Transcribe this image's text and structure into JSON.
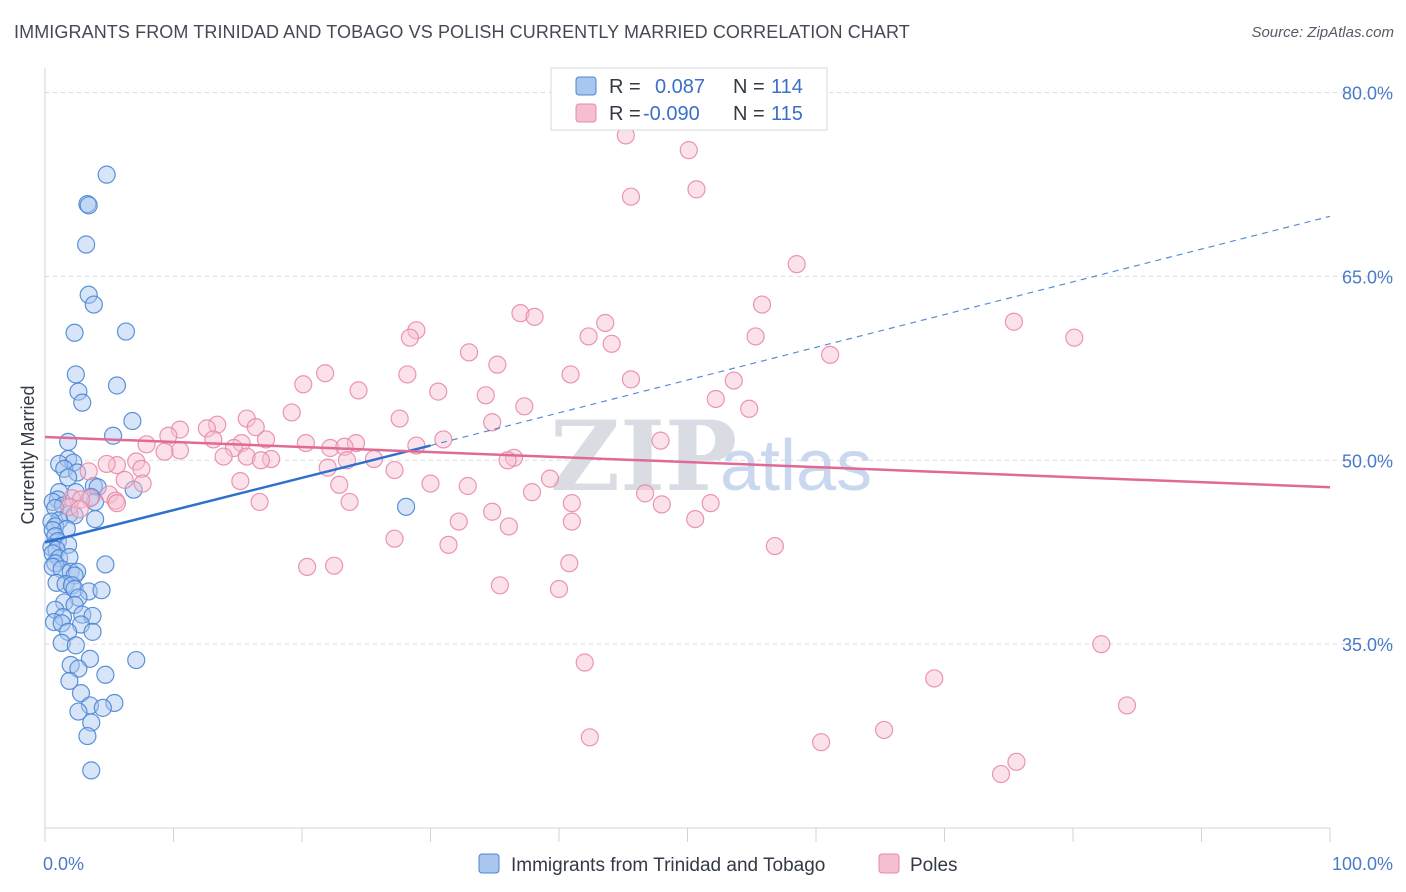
{
  "title": "IMMIGRANTS FROM TRINIDAD AND TOBAGO VS POLISH CURRENTLY MARRIED CORRELATION CHART",
  "source": "Source: ZipAtlas.com",
  "watermark": {
    "zip": "ZIP",
    "atlas": "atlas"
  },
  "colors": {
    "blue_fill": "#a9c6ef",
    "blue_stroke": "#4a86d4",
    "blue_line": "#2f6fcf",
    "pink_fill": "#f6bfd0",
    "pink_stroke": "#e98aa9",
    "pink_line": "#e06a93",
    "grid": "#d8dce3",
    "axis_text": "#4a7bc8"
  },
  "legend_top": {
    "rows": [
      {
        "r_label": "R =",
        "r_value": "0.087",
        "n_label": "N =",
        "n_value": "114",
        "color": "blue"
      },
      {
        "r_label": "R =",
        "r_value": "-0.090",
        "n_label": "N =",
        "n_value": "115",
        "color": "pink"
      }
    ]
  },
  "legend_bottom": [
    {
      "label": "Immigrants from Trinidad and Tobago",
      "color": "blue"
    },
    {
      "label": "Poles",
      "color": "pink"
    }
  ],
  "chart_data": {
    "type": "scatter",
    "title": "IMMIGRANTS FROM TRINIDAD AND TOBAGO VS POLISH CURRENTLY MARRIED CORRELATION CHART",
    "xlabel": "",
    "ylabel": "Currently Married",
    "xlim": [
      0,
      100
    ],
    "ylim": [
      20,
      82
    ],
    "x_tick_labels": [
      {
        "value": 0,
        "label": "0.0%"
      },
      {
        "value": 100,
        "label": "100.0%"
      }
    ],
    "y_ticks": [
      {
        "value": 35,
        "label": "35.0%"
      },
      {
        "value": 50,
        "label": "50.0%"
      },
      {
        "value": 65,
        "label": "65.0%"
      },
      {
        "value": 80,
        "label": "80.0%"
      }
    ],
    "x_minor_ticks": [
      0,
      10,
      20,
      30,
      40,
      50,
      60,
      70,
      80,
      90,
      100
    ],
    "grid": true,
    "legend_position": "top-center",
    "series": [
      {
        "name": "Immigrants from Trinidad and Tobago",
        "color": "blue",
        "trend": {
          "x": [
            0,
            30
          ],
          "y": [
            43.3,
            51.2
          ],
          "dashed_extension": {
            "x": [
              30,
              100
            ],
            "y": [
              51.2,
              69.9
            ]
          }
        },
        "points": [
          [
            4.8,
            73.3
          ],
          [
            3.3,
            70.9
          ],
          [
            3.4,
            70.8
          ],
          [
            3.2,
            67.6
          ],
          [
            3.4,
            63.5
          ],
          [
            3.8,
            62.7
          ],
          [
            2.3,
            60.4
          ],
          [
            6.3,
            60.5
          ],
          [
            2.4,
            57.0
          ],
          [
            5.6,
            56.1
          ],
          [
            2.6,
            55.6
          ],
          [
            2.9,
            54.7
          ],
          [
            6.8,
            53.2
          ],
          [
            5.3,
            52.0
          ],
          [
            1.8,
            51.5
          ],
          [
            1.8,
            50.1
          ],
          [
            2.2,
            49.8
          ],
          [
            1.1,
            49.7
          ],
          [
            1.5,
            49.3
          ],
          [
            2.5,
            49.0
          ],
          [
            1.8,
            48.6
          ],
          [
            3.8,
            47.9
          ],
          [
            4.1,
            47.8
          ],
          [
            6.9,
            47.6
          ],
          [
            1.1,
            47.4
          ],
          [
            2.4,
            47.4
          ],
          [
            3.6,
            47.0
          ],
          [
            1.0,
            46.8
          ],
          [
            0.6,
            46.6
          ],
          [
            3.9,
            46.6
          ],
          [
            1.4,
            46.3
          ],
          [
            0.8,
            46.1
          ],
          [
            1.9,
            45.6
          ],
          [
            2.3,
            45.5
          ],
          [
            1.1,
            45.1
          ],
          [
            3.9,
            45.2
          ],
          [
            0.5,
            45.0
          ],
          [
            0.8,
            44.6
          ],
          [
            1.7,
            44.4
          ],
          [
            0.6,
            44.3
          ],
          [
            0.8,
            43.8
          ],
          [
            1.0,
            43.4
          ],
          [
            1.8,
            43.1
          ],
          [
            0.5,
            42.9
          ],
          [
            0.9,
            42.7
          ],
          [
            0.6,
            42.4
          ],
          [
            1.1,
            42.0
          ],
          [
            1.9,
            42.1
          ],
          [
            0.8,
            41.6
          ],
          [
            4.7,
            41.5
          ],
          [
            0.6,
            41.3
          ],
          [
            1.3,
            41.1
          ],
          [
            2.0,
            40.9
          ],
          [
            2.5,
            40.9
          ],
          [
            2.3,
            40.6
          ],
          [
            0.9,
            40.0
          ],
          [
            1.6,
            39.9
          ],
          [
            2.1,
            39.8
          ],
          [
            2.3,
            39.5
          ],
          [
            3.4,
            39.3
          ],
          [
            4.4,
            39.4
          ],
          [
            2.6,
            38.8
          ],
          [
            1.5,
            38.4
          ],
          [
            2.3,
            38.2
          ],
          [
            0.8,
            37.8
          ],
          [
            2.9,
            37.4
          ],
          [
            3.7,
            37.3
          ],
          [
            1.4,
            37.2
          ],
          [
            0.7,
            36.8
          ],
          [
            1.3,
            36.7
          ],
          [
            2.8,
            36.6
          ],
          [
            1.8,
            36.0
          ],
          [
            3.7,
            36.0
          ],
          [
            1.3,
            35.1
          ],
          [
            2.4,
            34.9
          ],
          [
            3.5,
            33.8
          ],
          [
            7.1,
            33.7
          ],
          [
            2.0,
            33.3
          ],
          [
            2.6,
            33.0
          ],
          [
            4.7,
            32.5
          ],
          [
            1.9,
            32.0
          ],
          [
            2.8,
            31.0
          ],
          [
            5.4,
            30.2
          ],
          [
            3.5,
            30.0
          ],
          [
            4.5,
            29.8
          ],
          [
            2.6,
            29.5
          ],
          [
            3.6,
            28.6
          ],
          [
            3.3,
            27.5
          ],
          [
            3.6,
            24.7
          ],
          [
            28.1,
            46.2
          ]
        ]
      },
      {
        "name": "Poles",
        "color": "pink",
        "trend": {
          "x": [
            0,
            100
          ],
          "y": [
            51.9,
            47.8
          ]
        },
        "points": [
          [
            46.1,
            78.6
          ],
          [
            45.7,
            78.4
          ],
          [
            45.2,
            76.5
          ],
          [
            50.1,
            75.3
          ],
          [
            50.7,
            72.1
          ],
          [
            45.6,
            71.5
          ],
          [
            58.5,
            66.0
          ],
          [
            55.8,
            62.7
          ],
          [
            37.0,
            62.0
          ],
          [
            38.1,
            61.7
          ],
          [
            43.6,
            61.2
          ],
          [
            75.4,
            61.3
          ],
          [
            28.9,
            60.6
          ],
          [
            28.4,
            60.0
          ],
          [
            42.3,
            60.1
          ],
          [
            55.3,
            60.1
          ],
          [
            80.1,
            60.0
          ],
          [
            44.1,
            59.5
          ],
          [
            33.0,
            58.8
          ],
          [
            61.1,
            58.6
          ],
          [
            35.2,
            57.8
          ],
          [
            21.8,
            57.1
          ],
          [
            28.2,
            57.0
          ],
          [
            40.9,
            57.0
          ],
          [
            53.6,
            56.5
          ],
          [
            45.6,
            56.6
          ],
          [
            20.1,
            56.2
          ],
          [
            24.4,
            55.7
          ],
          [
            30.6,
            55.6
          ],
          [
            34.3,
            55.3
          ],
          [
            52.2,
            55.0
          ],
          [
            37.3,
            54.4
          ],
          [
            54.8,
            54.2
          ],
          [
            19.2,
            53.9
          ],
          [
            15.7,
            53.4
          ],
          [
            27.6,
            53.4
          ],
          [
            34.8,
            53.1
          ],
          [
            13.4,
            52.9
          ],
          [
            12.6,
            52.6
          ],
          [
            10.5,
            52.5
          ],
          [
            16.4,
            52.7
          ],
          [
            9.6,
            52.0
          ],
          [
            31.0,
            51.7
          ],
          [
            13.1,
            51.7
          ],
          [
            17.2,
            51.7
          ],
          [
            47.9,
            51.6
          ],
          [
            7.9,
            51.3
          ],
          [
            15.3,
            51.4
          ],
          [
            24.2,
            51.4
          ],
          [
            20.3,
            51.4
          ],
          [
            28.9,
            51.2
          ],
          [
            14.7,
            51.0
          ],
          [
            22.2,
            51.0
          ],
          [
            23.3,
            51.1
          ],
          [
            10.5,
            50.8
          ],
          [
            9.3,
            50.7
          ],
          [
            13.9,
            50.3
          ],
          [
            15.7,
            50.3
          ],
          [
            17.6,
            50.1
          ],
          [
            16.8,
            50.0
          ],
          [
            25.6,
            50.1
          ],
          [
            23.5,
            50.0
          ],
          [
            36.5,
            50.2
          ],
          [
            36.0,
            50.0
          ],
          [
            7.1,
            49.9
          ],
          [
            5.6,
            49.6
          ],
          [
            4.8,
            49.7
          ],
          [
            7.5,
            49.3
          ],
          [
            22.0,
            49.4
          ],
          [
            27.2,
            49.2
          ],
          [
            3.4,
            49.1
          ],
          [
            6.2,
            48.4
          ],
          [
            39.3,
            48.5
          ],
          [
            15.2,
            48.3
          ],
          [
            7.6,
            48.1
          ],
          [
            22.9,
            48.0
          ],
          [
            30.0,
            48.1
          ],
          [
            32.9,
            47.9
          ],
          [
            37.9,
            47.4
          ],
          [
            5.0,
            47.2
          ],
          [
            3.5,
            46.9
          ],
          [
            2.1,
            46.9
          ],
          [
            46.7,
            47.3
          ],
          [
            5.5,
            46.7
          ],
          [
            2.8,
            46.8
          ],
          [
            23.7,
            46.6
          ],
          [
            16.7,
            46.6
          ],
          [
            5.6,
            46.5
          ],
          [
            41.0,
            46.5
          ],
          [
            48.0,
            46.4
          ],
          [
            1.9,
            46.2
          ],
          [
            2.7,
            46.0
          ],
          [
            51.8,
            46.5
          ],
          [
            34.8,
            45.8
          ],
          [
            41.0,
            45.0
          ],
          [
            50.6,
            45.2
          ],
          [
            32.2,
            45.0
          ],
          [
            36.1,
            44.6
          ],
          [
            27.2,
            43.6
          ],
          [
            56.8,
            43.0
          ],
          [
            31.4,
            43.1
          ],
          [
            40.8,
            41.6
          ],
          [
            20.4,
            41.3
          ],
          [
            22.5,
            41.4
          ],
          [
            35.4,
            39.8
          ],
          [
            40.0,
            39.5
          ],
          [
            82.2,
            35.0
          ],
          [
            42.0,
            33.5
          ],
          [
            69.2,
            32.2
          ],
          [
            84.2,
            30.0
          ],
          [
            42.4,
            27.4
          ],
          [
            65.3,
            28.0
          ],
          [
            60.4,
            27.0
          ],
          [
            75.6,
            25.4
          ],
          [
            74.4,
            24.4
          ]
        ]
      }
    ]
  }
}
